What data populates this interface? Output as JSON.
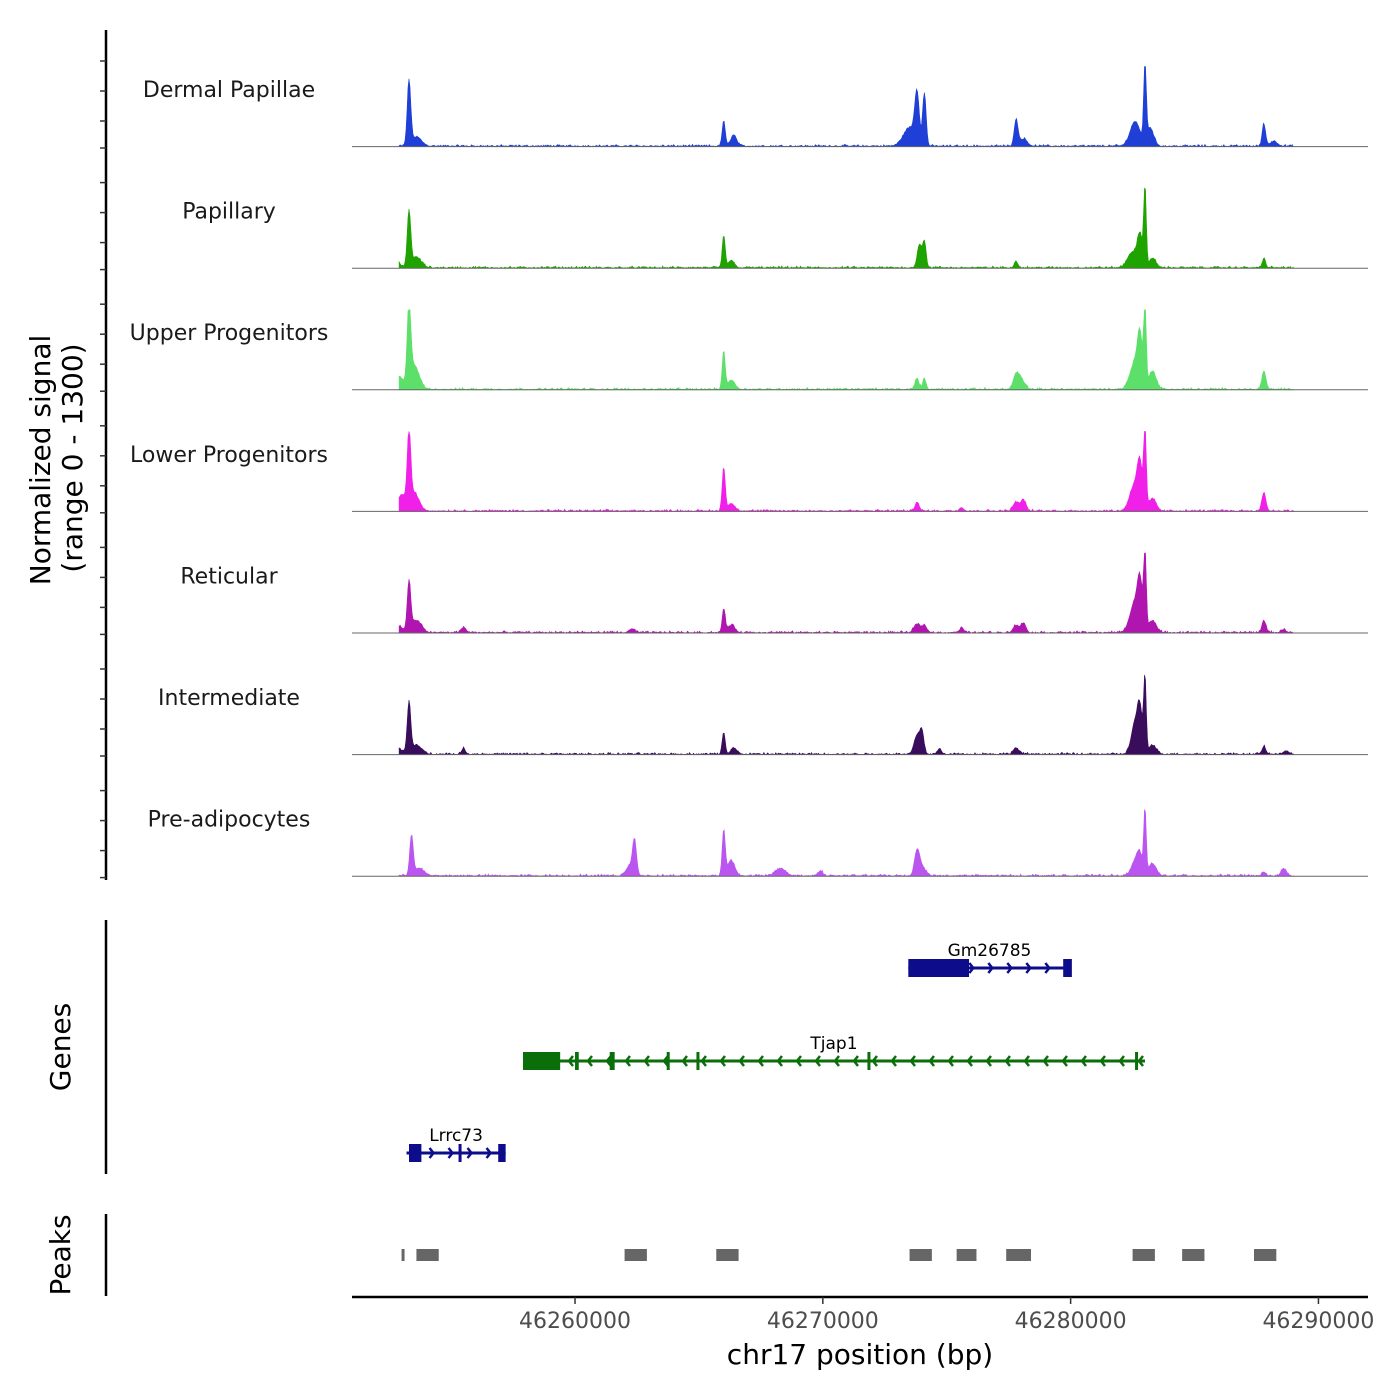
{
  "chart_data": {
    "type": "area",
    "chromosome": "chr17",
    "xlabel": "chr17 position (bp)",
    "ylabel_line1": "Normalized signal",
    "ylabel_line2": "(range 0 - 1300)",
    "y_range": [
      0,
      1300
    ],
    "xlim": [
      46251000,
      46292000
    ],
    "x_ticks": [
      {
        "value": 46260000,
        "label": "46260000"
      },
      {
        "value": 46270000,
        "label": "46270000"
      },
      {
        "value": 46280000,
        "label": "46280000"
      },
      {
        "value": 46290000,
        "label": "46290000"
      }
    ],
    "peak_positions": [
      46253400,
      46266000,
      46273700,
      46277800,
      46283000,
      46287800,
      46262400
    ],
    "tracks": [
      {
        "name": "Dermal Papillae",
        "color": "#1f3fd6",
        "peaks": [
          [
            46253300,
            1050,
            70
          ],
          [
            46253600,
            150,
            200
          ],
          [
            46266000,
            420,
            60
          ],
          [
            46266400,
            180,
            120
          ],
          [
            46273800,
            780,
            90
          ],
          [
            46274100,
            850,
            70
          ],
          [
            46273500,
            300,
            250
          ],
          [
            46277800,
            420,
            80
          ],
          [
            46278100,
            120,
            150
          ],
          [
            46282600,
            400,
            200
          ],
          [
            46283000,
            1300,
            50
          ],
          [
            46283200,
            300,
            150
          ],
          [
            46287800,
            360,
            70
          ],
          [
            46288200,
            80,
            150
          ]
        ]
      },
      {
        "name": "Papillary",
        "color": "#1fa300",
        "peaks": [
          [
            46253300,
            900,
            70
          ],
          [
            46253600,
            170,
            200
          ],
          [
            46252800,
            120,
            120
          ],
          [
            46266000,
            520,
            60
          ],
          [
            46266300,
            120,
            120
          ],
          [
            46273900,
            380,
            90
          ],
          [
            46274100,
            420,
            70
          ],
          [
            46277800,
            100,
            80
          ],
          [
            46282500,
            260,
            200
          ],
          [
            46282800,
            500,
            100
          ],
          [
            46283000,
            1300,
            50
          ],
          [
            46283300,
            150,
            150
          ],
          [
            46287800,
            150,
            70
          ]
        ]
      },
      {
        "name": "Upper Progenitors",
        "color": "#5de06a",
        "peaks": [
          [
            46253300,
            1250,
            70
          ],
          [
            46253500,
            400,
            200
          ],
          [
            46252900,
            200,
            150
          ],
          [
            46266000,
            600,
            60
          ],
          [
            46266300,
            150,
            150
          ],
          [
            46273800,
            180,
            80
          ],
          [
            46274100,
            170,
            70
          ],
          [
            46277800,
            200,
            120
          ],
          [
            46278000,
            150,
            150
          ],
          [
            46282600,
            450,
            200
          ],
          [
            46282800,
            700,
            100
          ],
          [
            46283000,
            1300,
            50
          ],
          [
            46283300,
            300,
            150
          ],
          [
            46287800,
            300,
            80
          ]
        ]
      },
      {
        "name": "Lower Progenitors",
        "color": "#f020e8",
        "peaks": [
          [
            46253300,
            1150,
            70
          ],
          [
            46253500,
            300,
            200
          ],
          [
            46253000,
            250,
            150
          ],
          [
            46266000,
            700,
            60
          ],
          [
            46266300,
            120,
            150
          ],
          [
            46273800,
            150,
            80
          ],
          [
            46275600,
            60,
            80
          ],
          [
            46277800,
            150,
            120
          ],
          [
            46278100,
            180,
            100
          ],
          [
            46282600,
            450,
            200
          ],
          [
            46282800,
            600,
            100
          ],
          [
            46283000,
            1300,
            50
          ],
          [
            46283300,
            200,
            150
          ],
          [
            46287800,
            300,
            80
          ]
        ]
      },
      {
        "name": "Reticular",
        "color": "#b015b0",
        "peaks": [
          [
            46253300,
            800,
            70
          ],
          [
            46253600,
            200,
            200
          ],
          [
            46252900,
            100,
            150
          ],
          [
            46255500,
            80,
            100
          ],
          [
            46262300,
            60,
            100
          ],
          [
            46266000,
            380,
            60
          ],
          [
            46266300,
            120,
            150
          ],
          [
            46273800,
            140,
            120
          ],
          [
            46274100,
            120,
            100
          ],
          [
            46275600,
            80,
            80
          ],
          [
            46277800,
            120,
            120
          ],
          [
            46278100,
            150,
            100
          ],
          [
            46282600,
            500,
            200
          ],
          [
            46282800,
            650,
            100
          ],
          [
            46283000,
            1300,
            50
          ],
          [
            46283300,
            200,
            150
          ],
          [
            46287800,
            200,
            80
          ],
          [
            46288600,
            50,
            100
          ]
        ]
      },
      {
        "name": "Intermediate",
        "color": "#3a0d5c",
        "peaks": [
          [
            46253300,
            820,
            70
          ],
          [
            46253600,
            150,
            200
          ],
          [
            46252900,
            80,
            150
          ],
          [
            46255500,
            100,
            70
          ],
          [
            46266000,
            360,
            60
          ],
          [
            46266400,
            100,
            120
          ],
          [
            46273800,
            300,
            120
          ],
          [
            46274000,
            350,
            80
          ],
          [
            46274700,
            80,
            80
          ],
          [
            46277800,
            100,
            120
          ],
          [
            46282600,
            500,
            150
          ],
          [
            46282800,
            650,
            100
          ],
          [
            46283000,
            1200,
            50
          ],
          [
            46283300,
            150,
            150
          ],
          [
            46287800,
            120,
            80
          ],
          [
            46288700,
            50,
            120
          ]
        ]
      },
      {
        "name": "Pre-adipocytes",
        "color": "#bb55f0",
        "peaks": [
          [
            46253400,
            640,
            70
          ],
          [
            46253700,
            120,
            200
          ],
          [
            46262400,
            550,
            80
          ],
          [
            46262200,
            150,
            150
          ],
          [
            46266000,
            740,
            60
          ],
          [
            46266300,
            250,
            150
          ],
          [
            46268300,
            120,
            200
          ],
          [
            46269900,
            80,
            100
          ],
          [
            46273800,
            380,
            100
          ],
          [
            46274000,
            150,
            150
          ],
          [
            46282600,
            250,
            150
          ],
          [
            46282800,
            300,
            100
          ],
          [
            46283000,
            1050,
            50
          ],
          [
            46283300,
            200,
            150
          ],
          [
            46287800,
            50,
            80
          ],
          [
            46288600,
            120,
            100
          ]
        ]
      }
    ],
    "genes": [
      {
        "name": "Gm26785",
        "color": "#0d0d8c",
        "strand": "+",
        "start": 46273450,
        "end": 46280000,
        "exons": [
          [
            46273450,
            46275900
          ],
          [
            46279700,
            46280050
          ]
        ]
      },
      {
        "name": "Tjap1",
        "color": "#0a6e0a",
        "strand": "-",
        "start": 46257900,
        "end": 46283000,
        "exons": [
          [
            46257900,
            46259400
          ],
          [
            46260000,
            46260150
          ],
          [
            46261400,
            46261600
          ],
          [
            46263700,
            46263800
          ],
          [
            46264900,
            46265000
          ],
          [
            46271800,
            46271900
          ],
          [
            46282600,
            46282700
          ]
        ]
      },
      {
        "name": "Lrrc73",
        "color": "#0d0d8c",
        "strand": "+",
        "start": 46253200,
        "end": 46257200,
        "exons": [
          [
            46253300,
            46253800
          ],
          [
            46255300,
            46255400
          ],
          [
            46256900,
            46257200
          ]
        ]
      }
    ],
    "peaks": [
      [
        46253000,
        46253100
      ],
      [
        46253600,
        46254500
      ],
      [
        46262000,
        46262900
      ],
      [
        46265700,
        46266600
      ],
      [
        46273500,
        46274400
      ],
      [
        46275400,
        46276200
      ],
      [
        46277400,
        46278400
      ],
      [
        46282500,
        46283400
      ],
      [
        46284500,
        46285400
      ],
      [
        46287400,
        46288300
      ]
    ],
    "genes_title": "Genes",
    "peaks_title": "Peaks"
  }
}
